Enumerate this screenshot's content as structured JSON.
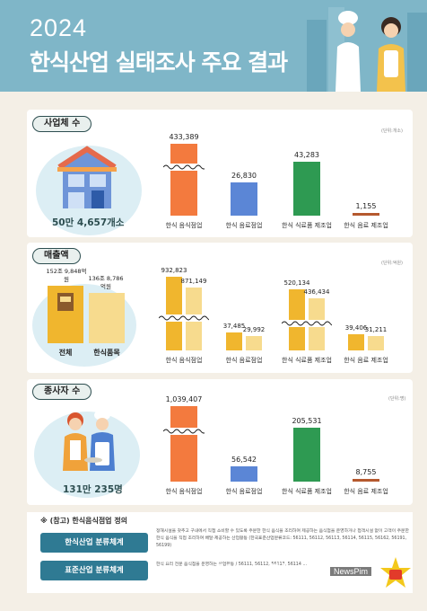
{
  "header": {
    "year": "2024",
    "title": "한식산업 실태조사 주요 결과"
  },
  "sections": [
    {
      "tag": "사업체 수",
      "unit": "(단위:개소)",
      "total": "50만 4,657개소"
    },
    {
      "tag": "매출액",
      "unit": "(단위:억원)",
      "total_label": "전체",
      "total_value": "152조 9,848억원",
      "hansik_label": "한식품목",
      "hansik_value": "136조 8,786억원"
    },
    {
      "tag": "종사자 수",
      "unit": "(단위:명)",
      "total": "131만 235명"
    }
  ],
  "colors": {
    "orange": "#f37a3e",
    "blue": "#5b86d6",
    "green": "#2e9a52",
    "brown": "#b5592e",
    "gold": "#f0b62e",
    "light_gold": "#f7db8e",
    "teal": "#2f7a93"
  },
  "chart_data": [
    {
      "type": "bar",
      "title": "사업체 수",
      "categories": [
        "한식 음식점업",
        "한식 음료점업",
        "한식 식료품 제조업",
        "한식 음료 제조업"
      ],
      "values": [
        433389,
        26830,
        43283,
        1155
      ],
      "value_labels": [
        "433,389",
        "26,830",
        "43,283",
        "1,155"
      ],
      "axis_break": true
    },
    {
      "type": "bar",
      "title": "매출액",
      "categories": [
        "한식 음식점업",
        "한식 음료점업",
        "한식 식료품 제조업",
        "한식 음료 제조업"
      ],
      "series": [
        {
          "values": [
            932823,
            37485,
            520134,
            39406
          ]
        },
        {
          "values": [
            871149,
            29992,
            436434,
            31211
          ]
        }
      ],
      "value_labels": [
        [
          "932,823",
          "37,485",
          "520,134",
          "39,406"
        ],
        [
          "871,149",
          "29,992",
          "436,434",
          "31,211"
        ]
      ],
      "axis_break": true
    },
    {
      "type": "bar",
      "title": "종사자 수",
      "categories": [
        "한식 음식점업",
        "한식 음료점업",
        "한식 식료품 제조업",
        "한식 음료 제조업"
      ],
      "values": [
        1039407,
        56542,
        205531,
        8755
      ],
      "value_labels": [
        "1,039,407",
        "56,542",
        "205,531",
        "8,755"
      ],
      "axis_break": true
    }
  ],
  "definition": {
    "title": "※ (참고) 한식음식점업 정의",
    "rows": [
      {
        "label": "한식산업 분류체계",
        "text": "정해시설을 갖추고 구내에서 직접 소비할 수 있도록 주문한 한식 음식을 조리하여 제공하는 음식점을 운영하거나 접객시설 없이 고객이 주문한 한식 음식을 직접 조리하여 배달·제공하는 산업활동 (한국표준산업분류코드: 56111, 56112, 56113, 56114, 56115, 56162, 56191, 56199)"
      },
      {
        "label": "표준산업 분류체계",
        "text": "한식 요리 전문 음식점을 운영하는 산업활동 / 56111, 56112, 56113, 56114 ..."
      }
    ]
  },
  "watermark": {
    "brand": "NewsPim"
  }
}
